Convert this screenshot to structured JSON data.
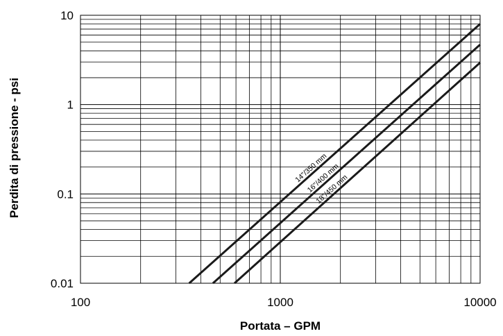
{
  "chart_data": {
    "type": "line",
    "title": "",
    "xlabel": "Portata – GPM",
    "ylabel": "Perdita di pressione - psi",
    "x_scale": "log",
    "y_scale": "log",
    "xlim": [
      100,
      10000
    ],
    "ylim": [
      0.01,
      10
    ],
    "x_ticks": [
      {
        "value": 100,
        "label": "100"
      },
      {
        "value": 1000,
        "label": "1000"
      },
      {
        "value": 10000,
        "label": "10000"
      }
    ],
    "y_ticks": [
      {
        "value": 10,
        "label": "10"
      },
      {
        "value": 1,
        "label": "1"
      },
      {
        "value": 0.1,
        "label": "0.1"
      },
      {
        "value": 0.01,
        "label": "0.01"
      }
    ],
    "grid": true,
    "legend": "none",
    "series": [
      {
        "name": "14\"/350 mm",
        "x": [
          350,
          10000
        ],
        "y": [
          0.01,
          8.0
        ],
        "label_at": 1480
      },
      {
        "name": "16\"/400 mm",
        "x": [
          460,
          10000
        ],
        "y": [
          0.01,
          4.7
        ],
        "label_at": 1700
      },
      {
        "name": "18\"/450 mm",
        "x": [
          590,
          10000
        ],
        "y": [
          0.01,
          2.95
        ],
        "label_at": 1880
      }
    ],
    "line_color": "#1a1a1a"
  }
}
